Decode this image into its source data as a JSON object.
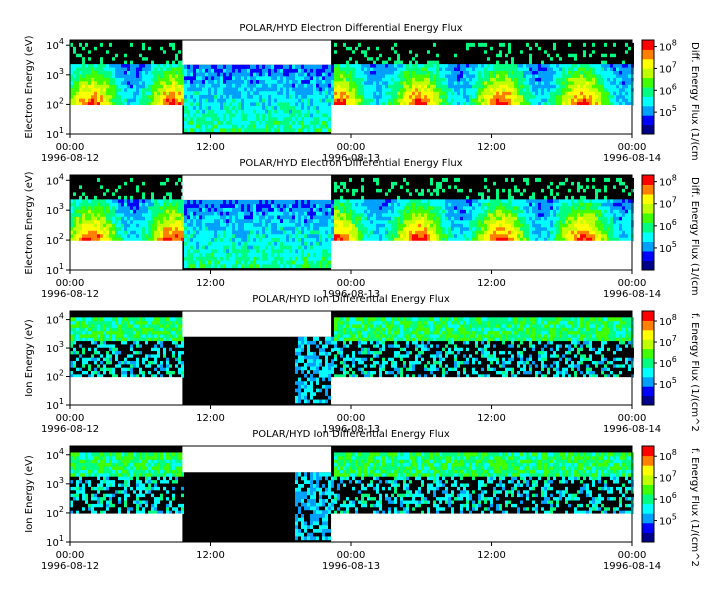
{
  "chart_data": [
    {
      "type": "heatmap",
      "title": "POLAR/HYD  Electron Differential Energy Flux",
      "ylabel": "Electron Energy (eV)",
      "colorbar_label": "Diff. Energy Flux (1/(cm",
      "y_scale": "log",
      "ylim": [
        10,
        15000
      ],
      "y_ticks": [
        "10^1",
        "10^2",
        "10^3",
        "10^4"
      ],
      "x_tick_times": [
        "00:00",
        "12:00",
        "00:00",
        "12:00",
        "00:00"
      ],
      "x_tick_dates": [
        "1996-08-12",
        "",
        "1996-08-13",
        "",
        "1996-08-14"
      ],
      "colorbar_ticks": [
        "10^5",
        "10^6",
        "10^7",
        "10^8"
      ],
      "colorbar_range": [
        10000,
        200000000
      ]
    },
    {
      "type": "heatmap",
      "title": "POLAR/HYD  Electron Differential Energy Flux",
      "ylabel": "Electron Energy (eV)",
      "colorbar_label": "Diff. Energy Flux (1/(cm",
      "y_scale": "log",
      "ylim": [
        10,
        15000
      ],
      "y_ticks": [
        "10^1",
        "10^2",
        "10^3",
        "10^4"
      ],
      "x_tick_times": [
        "00:00",
        "12:00",
        "00:00",
        "12:00",
        "00:00"
      ],
      "x_tick_dates": [
        "1996-08-12",
        "",
        "1996-08-13",
        "",
        "1996-08-14"
      ],
      "colorbar_ticks": [
        "10^5",
        "10^6",
        "10^7",
        "10^8"
      ],
      "colorbar_range": [
        10000,
        200000000
      ]
    },
    {
      "type": "heatmap",
      "title": "POLAR/HYD  Ion Differential Energy Flux",
      "ylabel": "Ion Energy (eV)",
      "colorbar_label": "f. Energy Flux (1/(cm^2",
      "y_scale": "log",
      "ylim": [
        10,
        20000
      ],
      "y_ticks": [
        "10^1",
        "10^2",
        "10^3",
        "10^4"
      ],
      "x_tick_times": [
        "00:00",
        "12:00",
        "00:00",
        "12:00",
        "00:00"
      ],
      "x_tick_dates": [
        "1996-08-12",
        "",
        "1996-08-13",
        "",
        "1996-08-14"
      ],
      "colorbar_ticks": [
        "10^5",
        "10^6",
        "10^7",
        "10^8"
      ],
      "colorbar_range": [
        10000,
        300000000
      ]
    },
    {
      "type": "heatmap",
      "title": "POLAR/HYD  Ion Differential Energy Flux",
      "ylabel": "Ion Energy (eV)",
      "colorbar_label": "f. Energy Flux (1/(cm^2",
      "y_scale": "log",
      "ylim": [
        10,
        20000
      ],
      "y_ticks": [
        "10^1",
        "10^2",
        "10^3",
        "10^4"
      ],
      "x_tick_times": [
        "00:00",
        "12:00",
        "00:00",
        "12:00",
        "00:00"
      ],
      "x_tick_dates": [
        "1996-08-12",
        "",
        "1996-08-13",
        "",
        "1996-08-14"
      ],
      "colorbar_ticks": [
        "10^5",
        "10^6",
        "10^7",
        "10^8"
      ],
      "colorbar_range": [
        10000,
        300000000
      ]
    }
  ],
  "colors": {
    "background": "#000000",
    "gap": "#ffffff",
    "colormap": [
      "#00008b",
      "#0000ff",
      "#00a0ff",
      "#00ffff",
      "#00ff80",
      "#40ff00",
      "#c0ff00",
      "#ffff00",
      "#ff8000",
      "#ff0000"
    ]
  }
}
